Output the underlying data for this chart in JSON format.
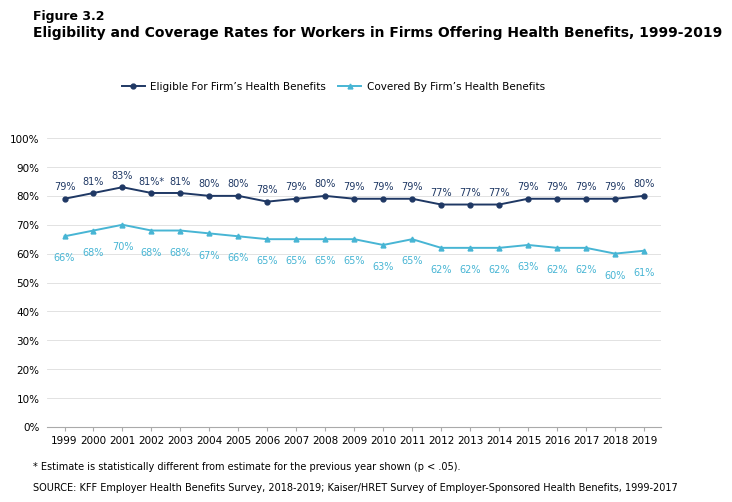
{
  "years": [
    1999,
    2000,
    2001,
    2002,
    2003,
    2004,
    2005,
    2006,
    2007,
    2008,
    2009,
    2010,
    2011,
    2012,
    2013,
    2014,
    2015,
    2016,
    2017,
    2018,
    2019
  ],
  "eligible": [
    79,
    81,
    83,
    81,
    81,
    80,
    80,
    78,
    79,
    80,
    79,
    79,
    79,
    77,
    77,
    77,
    79,
    79,
    79,
    79,
    80
  ],
  "eligible_labels": [
    "79%",
    "81%",
    "83%",
    "81%*",
    "81%",
    "80%",
    "80%",
    "78%",
    "79%",
    "80%",
    "79%",
    "79%",
    "79%",
    "77%",
    "77%",
    "77%",
    "79%",
    "79%",
    "79%",
    "79%",
    "80%"
  ],
  "covered": [
    66,
    68,
    70,
    68,
    68,
    67,
    66,
    65,
    65,
    65,
    65,
    63,
    65,
    62,
    62,
    62,
    63,
    62,
    62,
    60,
    61
  ],
  "covered_labels": [
    "66%",
    "68%",
    "70%",
    "68%",
    "68%",
    "67%",
    "66%",
    "65%",
    "65%",
    "65%",
    "65%",
    "63%",
    "65%",
    "62%",
    "62%",
    "62%",
    "63%",
    "62%",
    "62%",
    "60%",
    "61%"
  ],
  "eligible_color": "#1f3864",
  "covered_color": "#47b5d4",
  "fig_label": "Figure 3.2",
  "fig_title": "Eligibility and Coverage Rates for Workers in Firms Offering Health Benefits, 1999-2019",
  "legend_eligible": "Eligible For Firm’s Health Benefits",
  "legend_covered": "Covered By Firm’s Health Benefits",
  "footnote1": "* Estimate is statistically different from estimate for the previous year shown (p < .05).",
  "footnote2": "SOURCE: KFF Employer Health Benefits Survey, 2018-2019; Kaiser/HRET Survey of Employer-Sponsored Health Benefits, 1999-2017",
  "ylim": [
    0,
    100
  ],
  "yticks": [
    0,
    10,
    20,
    30,
    40,
    50,
    60,
    70,
    80,
    90,
    100
  ],
  "background_color": "#ffffff",
  "label_fontsize": 7,
  "axis_fontsize": 7.5,
  "title_fontsize": 10,
  "figlabel_fontsize": 9
}
